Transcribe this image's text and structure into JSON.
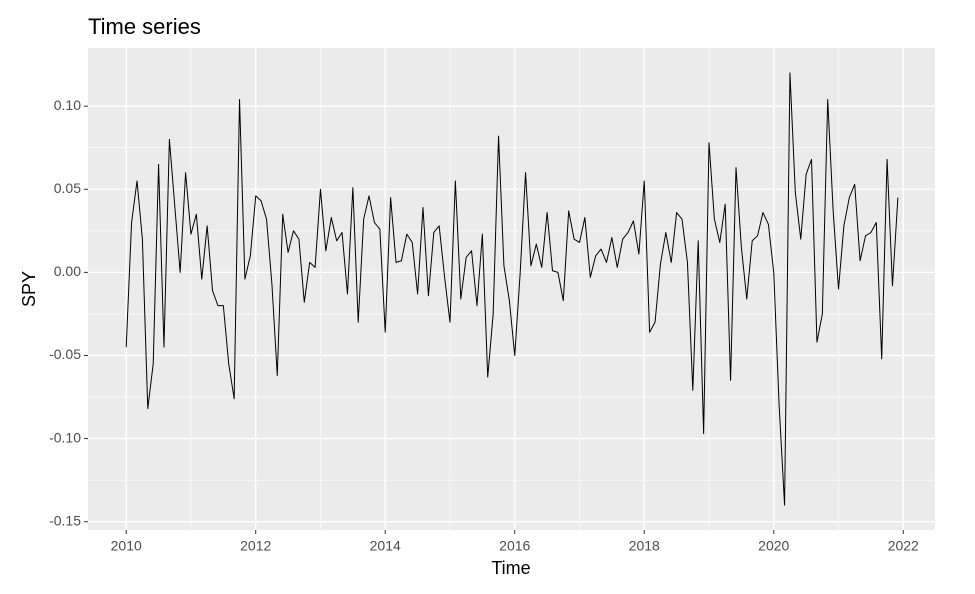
{
  "chart_data": {
    "type": "line",
    "title": "Time series",
    "x_label": "Time",
    "y_label": "SPY",
    "color": "#000000",
    "grid": true,
    "xlim": [
      2009.41,
      2022.49
    ],
    "ylim": [
      -0.155,
      0.135
    ],
    "xticks": [
      2010,
      2012,
      2014,
      2016,
      2018,
      2020,
      2022
    ],
    "yticks": [
      {
        "value": -0.15,
        "label": "-0.15"
      },
      {
        "value": -0.1,
        "label": "-0.10"
      },
      {
        "value": -0.05,
        "label": "-0.05"
      },
      {
        "value": 0,
        "label": "0.00"
      },
      {
        "value": 0.05,
        "label": "0.05"
      },
      {
        "value": 0.1,
        "label": "0.10"
      }
    ],
    "x": [
      2010,
      2010.083,
      2010.167,
      2010.25,
      2010.333,
      2010.417,
      2010.5,
      2010.583,
      2010.667,
      2010.75,
      2010.833,
      2010.917,
      2011,
      2011.083,
      2011.167,
      2011.25,
      2011.333,
      2011.417,
      2011.5,
      2011.583,
      2011.667,
      2011.75,
      2011.833,
      2011.917,
      2012,
      2012.083,
      2012.167,
      2012.25,
      2012.333,
      2012.417,
      2012.5,
      2012.583,
      2012.667,
      2012.75,
      2012.833,
      2012.917,
      2013,
      2013.083,
      2013.167,
      2013.25,
      2013.333,
      2013.417,
      2013.5,
      2013.583,
      2013.667,
      2013.75,
      2013.833,
      2013.917,
      2014,
      2014.083,
      2014.167,
      2014.25,
      2014.333,
      2014.417,
      2014.5,
      2014.583,
      2014.667,
      2014.75,
      2014.833,
      2014.917,
      2015,
      2015.083,
      2015.167,
      2015.25,
      2015.333,
      2015.417,
      2015.5,
      2015.583,
      2015.667,
      2015.75,
      2015.833,
      2015.917,
      2016,
      2016.083,
      2016.167,
      2016.25,
      2016.333,
      2016.417,
      2016.5,
      2016.583,
      2016.667,
      2016.75,
      2016.833,
      2016.917,
      2017,
      2017.083,
      2017.167,
      2017.25,
      2017.333,
      2017.417,
      2017.5,
      2017.583,
      2017.667,
      2017.75,
      2017.833,
      2017.917,
      2018,
      2018.083,
      2018.167,
      2018.25,
      2018.333,
      2018.417,
      2018.5,
      2018.583,
      2018.667,
      2018.75,
      2018.833,
      2018.917,
      2019,
      2019.083,
      2019.167,
      2019.25,
      2019.333,
      2019.417,
      2019.5,
      2019.583,
      2019.667,
      2019.75,
      2019.833,
      2019.917,
      2020,
      2020.083,
      2020.167,
      2020.25,
      2020.333,
      2020.417,
      2020.5,
      2020.583,
      2020.667,
      2020.75,
      2020.833,
      2020.917,
      2021,
      2021.083,
      2021.167,
      2021.25,
      2021.333,
      2021.417,
      2021.5,
      2021.583,
      2021.667,
      2021.75,
      2021.833,
      2021.917
    ],
    "values": [
      -0.045,
      0.03,
      0.055,
      0.02,
      -0.082,
      -0.055,
      0.065,
      -0.045,
      0.08,
      0.04,
      0.0,
      0.06,
      0.023,
      0.035,
      -0.004,
      0.028,
      -0.011,
      -0.02,
      -0.02,
      -0.055,
      -0.076,
      0.104,
      -0.004,
      0.01,
      0.046,
      0.043,
      0.032,
      -0.007,
      -0.062,
      0.035,
      0.012,
      0.025,
      0.02,
      -0.018,
      0.006,
      0.003,
      0.05,
      0.013,
      0.033,
      0.019,
      0.024,
      -0.013,
      0.051,
      -0.03,
      0.032,
      0.046,
      0.03,
      0.026,
      -0.036,
      0.045,
      0.006,
      0.007,
      0.023,
      0.018,
      -0.013,
      0.039,
      -0.014,
      0.024,
      0.028,
      -0.003,
      -0.03,
      0.055,
      -0.016,
      0.009,
      0.013,
      -0.02,
      0.023,
      -0.063,
      -0.025,
      0.082,
      0.004,
      -0.017,
      -0.05,
      -0.001,
      0.06,
      0.004,
      0.017,
      0.003,
      0.036,
      0.001,
      0.0,
      -0.017,
      0.037,
      0.02,
      0.018,
      0.033,
      -0.003,
      0.01,
      0.014,
      0.006,
      0.021,
      0.003,
      0.02,
      0.024,
      0.031,
      0.011,
      0.055,
      -0.036,
      -0.03,
      0.005,
      0.024,
      0.006,
      0.036,
      0.032,
      0.006,
      -0.071,
      0.019,
      -0.097,
      0.078,
      0.032,
      0.018,
      0.041,
      -0.065,
      0.063,
      0.015,
      -0.016,
      0.019,
      0.022,
      0.036,
      0.029,
      0.0,
      -0.08,
      -0.14,
      0.12,
      0.048,
      0.02,
      0.059,
      0.068,
      -0.042,
      -0.025,
      0.104,
      0.037,
      -0.01,
      0.028,
      0.045,
      0.053,
      0.007,
      0.022,
      0.024,
      0.03,
      -0.052,
      0.068,
      -0.008,
      0.045
    ]
  }
}
